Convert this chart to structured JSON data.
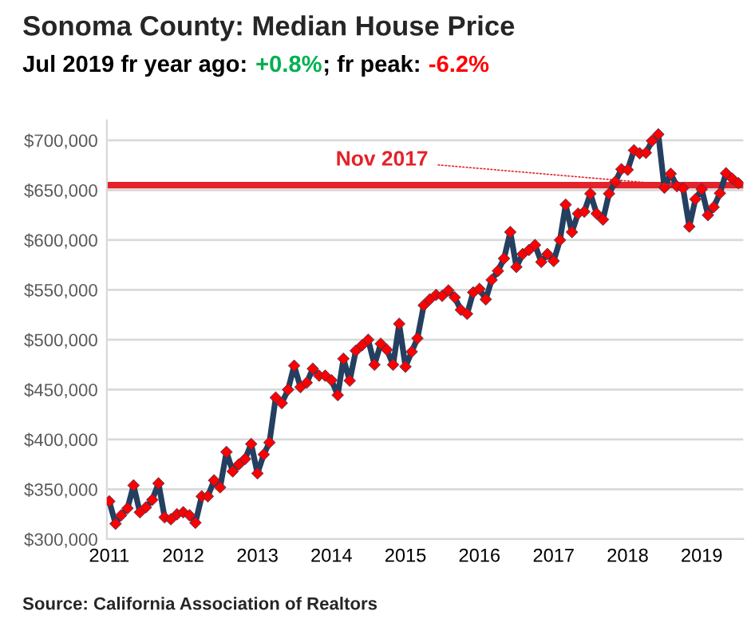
{
  "chart_data": {
    "type": "line",
    "title": "Sonoma County: Median House Price",
    "subtitle": "Jul 2019 fr year ago: +0.8%; fr peak: -6.2%",
    "annotations": [
      "Source: California Association of Realtors"
    ],
    "x": [
      "2011-01",
      "2011-02",
      "2011-03",
      "2011-04",
      "2011-05",
      "2011-06",
      "2011-07",
      "2011-08",
      "2011-09",
      "2011-10",
      "2011-11",
      "2011-12",
      "2012-01",
      "2012-02",
      "2012-03",
      "2012-04",
      "2012-05",
      "2012-06",
      "2012-07",
      "2012-08",
      "2012-09",
      "2012-10",
      "2012-11",
      "2012-12",
      "2013-01",
      "2013-02",
      "2013-03",
      "2013-04",
      "2013-05",
      "2013-06",
      "2013-07",
      "2013-08",
      "2013-09",
      "2013-10",
      "2013-11",
      "2013-12",
      "2014-01",
      "2014-02",
      "2014-03",
      "2014-04",
      "2014-05",
      "2014-06",
      "2014-07",
      "2014-08",
      "2014-09",
      "2014-10",
      "2014-11",
      "2014-12",
      "2015-01",
      "2015-02",
      "2015-03",
      "2015-04",
      "2015-05",
      "2015-06",
      "2015-07",
      "2015-08",
      "2015-09",
      "2015-10",
      "2015-11",
      "2015-12",
      "2016-01",
      "2016-02",
      "2016-03",
      "2016-04",
      "2016-05",
      "2016-06",
      "2016-07",
      "2016-08",
      "2016-09",
      "2016-10",
      "2016-11",
      "2016-12",
      "2017-01",
      "2017-02",
      "2017-03",
      "2017-04",
      "2017-05",
      "2017-06",
      "2017-07",
      "2017-08",
      "2017-09",
      "2017-10",
      "2017-11",
      "2017-12",
      "2018-01",
      "2018-02",
      "2018-03",
      "2018-04",
      "2018-05",
      "2018-06",
      "2018-07",
      "2018-08",
      "2018-09",
      "2018-10",
      "2018-11",
      "2018-12",
      "2019-01",
      "2019-02",
      "2019-03",
      "2019-04",
      "2019-05",
      "2019-06",
      "2019-07"
    ],
    "series": [
      {
        "color": "#243f60",
        "colors": [
          "#ff0000",
          "#ff0000",
          "#ff0000",
          "#ff0000",
          "#ff0000",
          "#ff0000",
          "#ff0000",
          "#ff0000",
          "#ff0000",
          "#ff0000",
          "#ff0000",
          "#ff0000",
          "#ff0000",
          "#ff0000",
          "#ff0000",
          "#ff0000",
          "#ff0000",
          "#ff0000",
          "#ff0000",
          "#ff0000",
          "#ff0000",
          "#ff0000",
          "#ff0000",
          "#ff0000",
          "#ff0000",
          "#ff0000",
          "#ff0000",
          "#ff0000",
          "#ff0000",
          "#ff0000",
          "#ff0000",
          "#ff0000",
          "#ff0000",
          "#ff0000",
          "#ff0000",
          "#ff0000",
          "#ff0000",
          "#ff0000",
          "#ff0000",
          "#ff0000",
          "#ff0000",
          "#ff0000",
          "#ff0000",
          "#ff0000",
          "#ff0000",
          "#ff0000",
          "#ff0000",
          "#ff0000",
          "#ff0000",
          "#ff0000",
          "#ff0000",
          "#ff0000",
          "#ff0000",
          "#ff0000",
          "#ff0000",
          "#ff0000",
          "#ff0000",
          "#ff0000",
          "#ff0000",
          "#ff0000",
          "#ff0000",
          "#ff0000",
          "#ff0000",
          "#ff0000",
          "#ff0000",
          "#ff0000",
          "#ff0000",
          "#ff0000",
          "#ff0000",
          "#ff0000",
          "#ff0000",
          "#ff0000",
          "#ff0000",
          "#ff0000",
          "#ff0000",
          "#ff0000",
          "#ff0000",
          "#ff0000",
          "#ff0000",
          "#ff0000",
          "#ff0000",
          "#ff0000",
          "#ff0000",
          "#ff0000",
          "#ff0000",
          "#ff0000",
          "#ff0000",
          "#ff0000",
          "#ff0000",
          "#ff0000",
          "#ff0000",
          "#ff0000",
          "#ff0000",
          "#ff0000",
          "#ff0000",
          "#ff0000",
          "#ff0000",
          "#ff0000",
          "#ff0000",
          "#ff0000",
          "#ff0000",
          "#ff0000",
          "#ff0000"
        ],
        "values": [
          338000,
          315500,
          324000,
          331000,
          354000,
          327000,
          332000,
          339500,
          356000,
          322000,
          320000,
          325000,
          327000,
          324000,
          316500,
          343000,
          343000,
          359000,
          352000,
          387500,
          368000,
          375000,
          380500,
          395500,
          366000,
          385000,
          397000,
          442000,
          436500,
          450000,
          474000,
          452500,
          457000,
          471000,
          464000,
          464000,
          459500,
          444500,
          481000,
          459000,
          489000,
          494500,
          500000,
          475000,
          496000,
          490000,
          475000,
          516000,
          473000,
          488000,
          501500,
          534500,
          540500,
          545000,
          544000,
          549500,
          542500,
          530000,
          526000,
          547500,
          551000,
          540500,
          560000,
          569000,
          581500,
          608000,
          573000,
          586000,
          590000,
          595000,
          578000,
          586000,
          579000,
          600000,
          635500,
          608000,
          626500,
          628500,
          646500,
          626500,
          620500,
          646500,
          658500,
          671000,
          670500,
          690000,
          687000,
          687500,
          699500,
          706000,
          652500,
          666500,
          654000,
          652000,
          613500,
          641000,
          651000,
          625000,
          633000,
          647000,
          667000,
          661500,
          657000
        ]
      }
    ],
    "marker": "diamond",
    "line_style": "solid",
    "grid": "y",
    "legend": false,
    "xlim": [
      "2010-12-20",
      "2019-07-25"
    ],
    "xticks": [
      {
        "value": "2011-01",
        "label": "2011"
      },
      {
        "value": "2012-01",
        "label": "2012"
      },
      {
        "value": "2013-01",
        "label": "2013"
      },
      {
        "value": "2014-01",
        "label": "2014"
      },
      {
        "value": "2015-01",
        "label": "2015"
      },
      {
        "value": "2016-01",
        "label": "2016"
      },
      {
        "value": "2017-01",
        "label": "2017"
      },
      {
        "value": "2018-01",
        "label": "2018"
      },
      {
        "value": "2019-01",
        "label": "2019"
      }
    ],
    "ylim": [
      300000,
      720000
    ],
    "yticks": [
      {
        "value": 300000,
        "label": "$300,000"
      },
      {
        "value": 350000,
        "label": "$350,000"
      },
      {
        "value": 400000,
        "label": "$400,000"
      },
      {
        "value": 450000,
        "label": "$450,000"
      },
      {
        "value": 500000,
        "label": "$500,000"
      },
      {
        "value": 550000,
        "label": "$550,000"
      },
      {
        "value": 600000,
        "label": "$600,000"
      },
      {
        "value": 650000,
        "label": "$650,000"
      },
      {
        "value": 700000,
        "label": "$700,000"
      }
    ],
    "ref_lines": [
      {
        "axis": "y",
        "value": 655000,
        "label": "Nov 2017",
        "color": "#e3222a",
        "line_style": "solid"
      }
    ]
  }
}
